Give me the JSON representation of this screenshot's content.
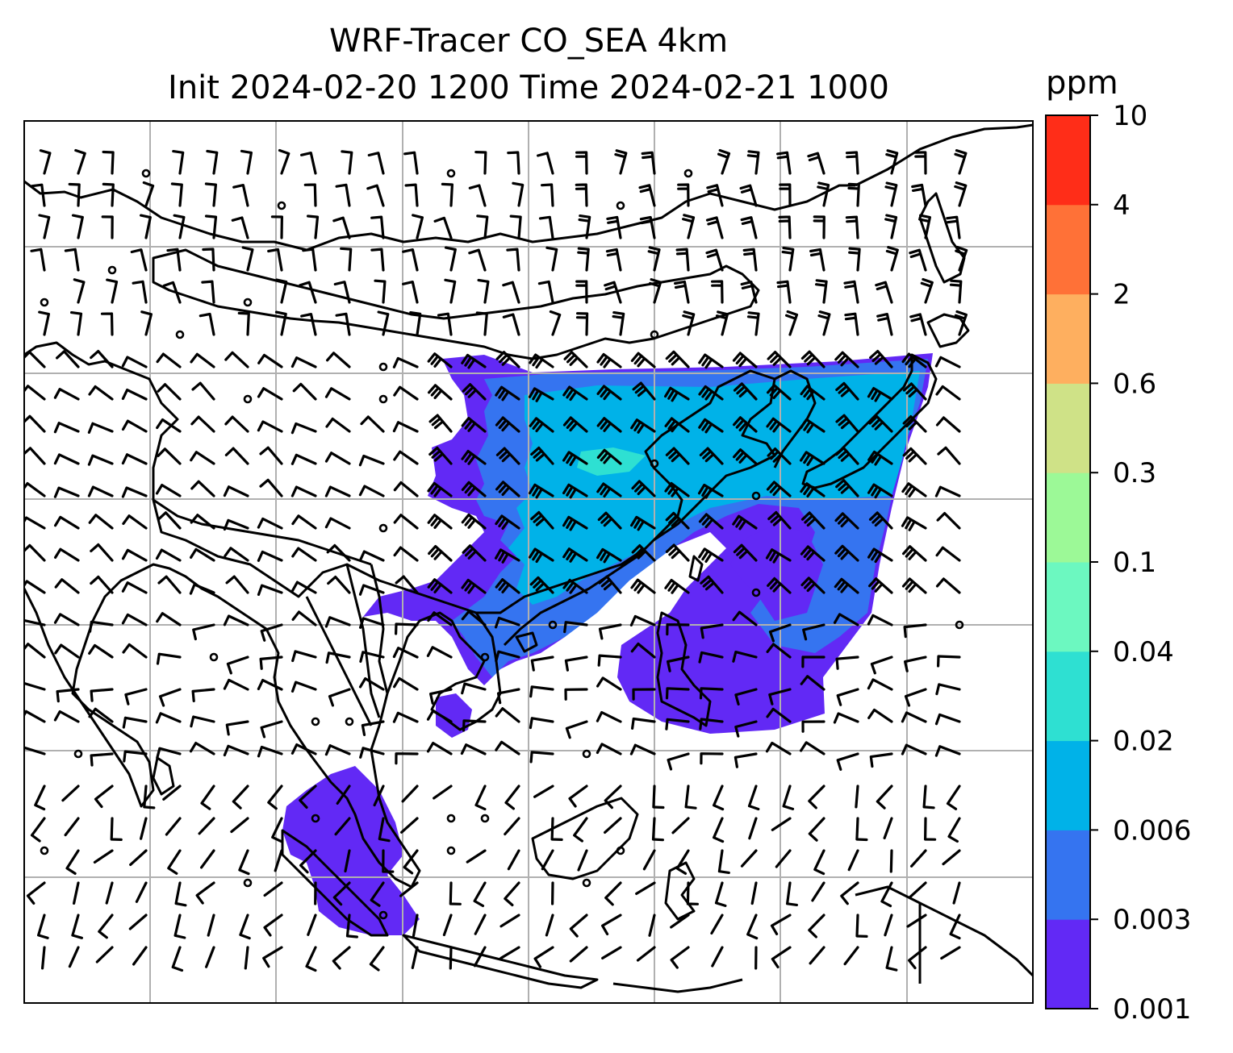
{
  "title": {
    "line1": "WRF-Tracer CO_SEA 4km",
    "line2": "Init 2024-02-20 1200 Time 2024-02-21 1000"
  },
  "colorbar": {
    "unit": "ppm",
    "levels": [
      "0.001",
      "0.003",
      "0.006",
      "0.02",
      "0.04",
      "0.1",
      "0.3",
      "0.6",
      "2",
      "4",
      "10"
    ],
    "colors": [
      "#6229f5",
      "#3574f0",
      "#00b2e8",
      "#2ee0d2",
      "#6cf8c0",
      "#9cf997",
      "#cfe287",
      "#feaf5f",
      "#ff7137",
      "#ff2d18"
    ]
  },
  "map": {
    "gridlines": true,
    "coastline_color": "#000000",
    "grid_color": "#b0b0b0",
    "plume_colors": {
      "faint": "#6229f5",
      "low": "#3574f0",
      "mid": "#00b2e8",
      "high": "#2ee0d2"
    },
    "wind_barbs": "north-eastern wind barbs over southeast and east Asia"
  }
}
